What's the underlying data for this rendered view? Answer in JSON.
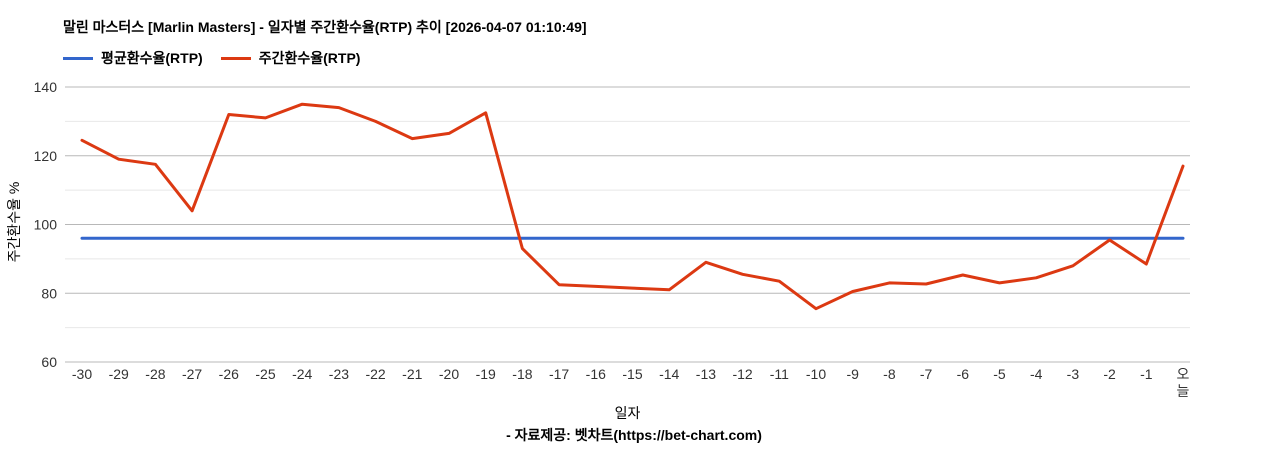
{
  "header": {
    "title": "말린 마스터스 [Marlin Masters] - 일자별 주간환수율(RTP) 추이 [2026-04-07 01:10:49]"
  },
  "legend": [
    {
      "label": "평균환수율(RTP)",
      "color": "#3366cc"
    },
    {
      "label": "주간환수율(RTP)",
      "color": "#dc3912"
    }
  ],
  "footer": {
    "text": "- 자료제공: 벳차트(https://bet-chart.com)"
  },
  "colors": {
    "average_line": "#3366cc",
    "weekly_line": "#dc3912",
    "grid_major": "#b8b8b8",
    "grid_minor": "#e8e8e8",
    "tick_text": "#333333"
  },
  "chart_data": {
    "type": "line",
    "title": "말린 마스터스 [Marlin Masters] - 일자별 주간환수율(RTP) 추이 [2026-04-07 01:10:49]",
    "xlabel": "일자",
    "ylabel": "주간환수율 %",
    "ylim": [
      60,
      140
    ],
    "yticks": [
      60,
      80,
      100,
      120,
      140
    ],
    "grid_minor_step": 10,
    "grid": "horizontal-only",
    "legend_position": "top-left",
    "categories": [
      "-30",
      "-29",
      "-28",
      "-27",
      "-26",
      "-25",
      "-24",
      "-23",
      "-22",
      "-21",
      "-20",
      "-19",
      "-18",
      "-17",
      "-16",
      "-15",
      "-14",
      "-13",
      "-12",
      "-11",
      "-10",
      "-9",
      "-8",
      "-7",
      "-6",
      "-5",
      "-4",
      "-3",
      "-2",
      "-1",
      "오늘"
    ],
    "series": [
      {
        "id": "average",
        "name": "평균환수율(RTP)",
        "color": "#3366cc",
        "values": [
          96,
          96,
          96,
          96,
          96,
          96,
          96,
          96,
          96,
          96,
          96,
          96,
          96,
          96,
          96,
          96,
          96,
          96,
          96,
          96,
          96,
          96,
          96,
          96,
          96,
          96,
          96,
          96,
          96,
          96,
          96
        ]
      },
      {
        "id": "weekly",
        "name": "주간환수율(RTP)",
        "color": "#dc3912",
        "values": [
          124.5,
          119,
          117.5,
          104,
          132,
          131,
          135,
          134,
          130,
          125,
          126.5,
          132.5,
          93,
          82.5,
          82,
          81.5,
          81,
          89,
          85.5,
          83.5,
          75.5,
          80.5,
          83,
          82.7,
          85.3,
          83,
          84.5,
          88,
          95.5,
          88.5,
          117
        ]
      }
    ]
  }
}
